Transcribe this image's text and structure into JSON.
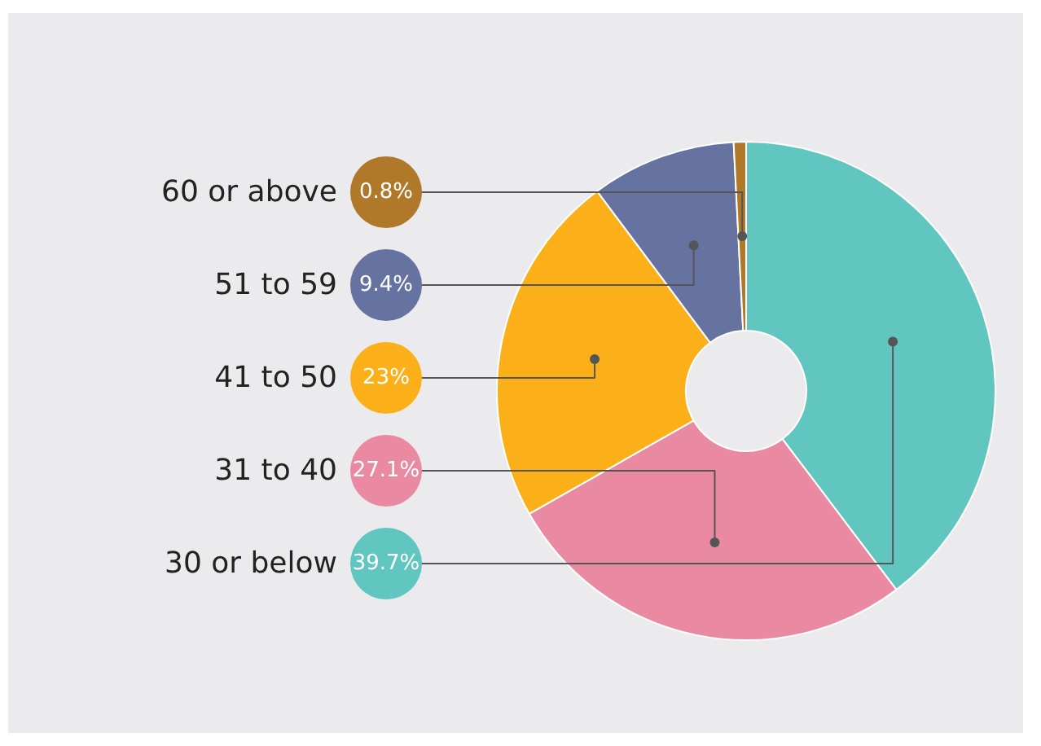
{
  "chart_data": {
    "type": "donut",
    "categories": [
      "30 or below",
      "31 to 40",
      "41 to 50",
      "51 to 59",
      "60 or above"
    ],
    "values": [
      39.7,
      27.1,
      23,
      9.4,
      0.8
    ],
    "colors": [
      "#62c6c0",
      "#e98aa2",
      "#fbb01a",
      "#6672a0",
      "#b0792a"
    ],
    "value_labels": [
      "39.7%",
      "27.1%",
      "23%",
      "9.4%",
      "0.8%"
    ]
  }
}
